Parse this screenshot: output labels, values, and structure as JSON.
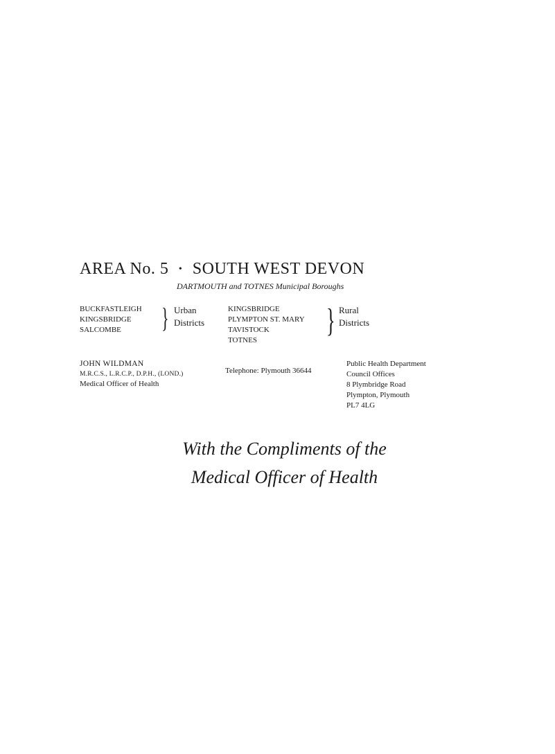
{
  "title": {
    "area_label": "AREA",
    "area_no": "No. 5",
    "name": "SOUTH WEST DEVON"
  },
  "subtitle": "DARTMOUTH and TOTNES Municipal Boroughs",
  "urban": {
    "items": [
      "BUCKFASTLEIGH",
      "KINGSBRIDGE",
      "SALCOMBE"
    ],
    "label_l1": "Urban",
    "label_l2": "Districts"
  },
  "rural": {
    "items": [
      "KINGSBRIDGE",
      "PLYMPTON ST. MARY",
      "TAVISTOCK",
      "TOTNES"
    ],
    "label_l1": "Rural",
    "label_l2": "Districts"
  },
  "officer": {
    "name": "JOHN WILDMAN",
    "quals": "M.R.C.S., L.R.C.P., D.P.H., (LOND.)",
    "title": "Medical Officer of Health"
  },
  "telephone": "Telephone: Plymouth 36644",
  "department": {
    "l1": "Public Health Department",
    "l2": "Council Offices",
    "l3": "8 Plymbridge Road",
    "l4": "Plympton, Plymouth",
    "l5": "PL7 4LG"
  },
  "script": {
    "l1": "With the Compliments of the",
    "l2": "Medical Officer of Health"
  }
}
